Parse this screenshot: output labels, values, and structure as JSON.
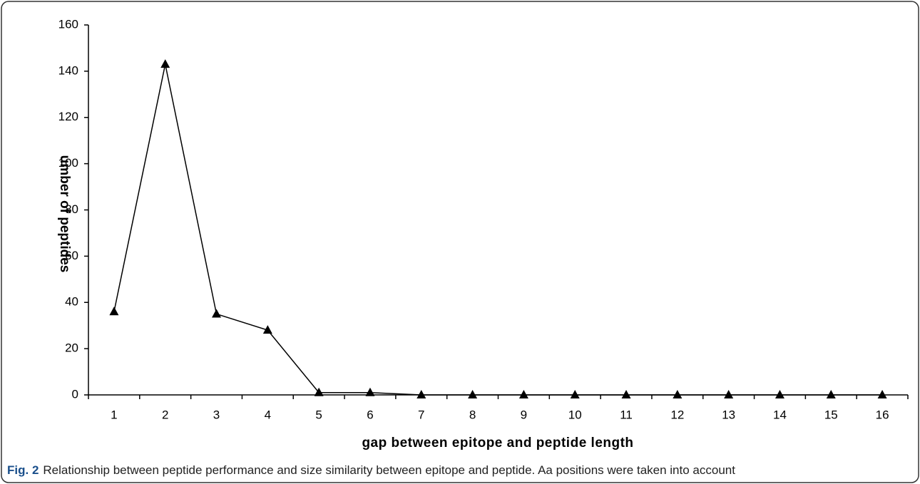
{
  "chart_data": {
    "type": "line",
    "y_label": "umber of peptides",
    "x_label": "gap between epitope and peptide length",
    "caption_label": "Fig. 2",
    "caption_text": "Relationship between peptide performance and size similarity between epitope and peptide. Aa positions were taken into account",
    "categories": [
      "1",
      "2",
      "3",
      "4",
      "5",
      "6",
      "7",
      "8",
      "9",
      "10",
      "11",
      "12",
      "13",
      "14",
      "15",
      "16"
    ],
    "series": [
      {
        "color": "#000000",
        "values": [
          36,
          143,
          35,
          28,
          1,
          1,
          0,
          0,
          0,
          0,
          0,
          0,
          0,
          0,
          0,
          0
        ]
      }
    ],
    "ylim": [
      0,
      160
    ],
    "yticks": [
      0,
      20,
      40,
      60,
      80,
      100,
      120,
      140,
      160
    ],
    "grid": false
  }
}
